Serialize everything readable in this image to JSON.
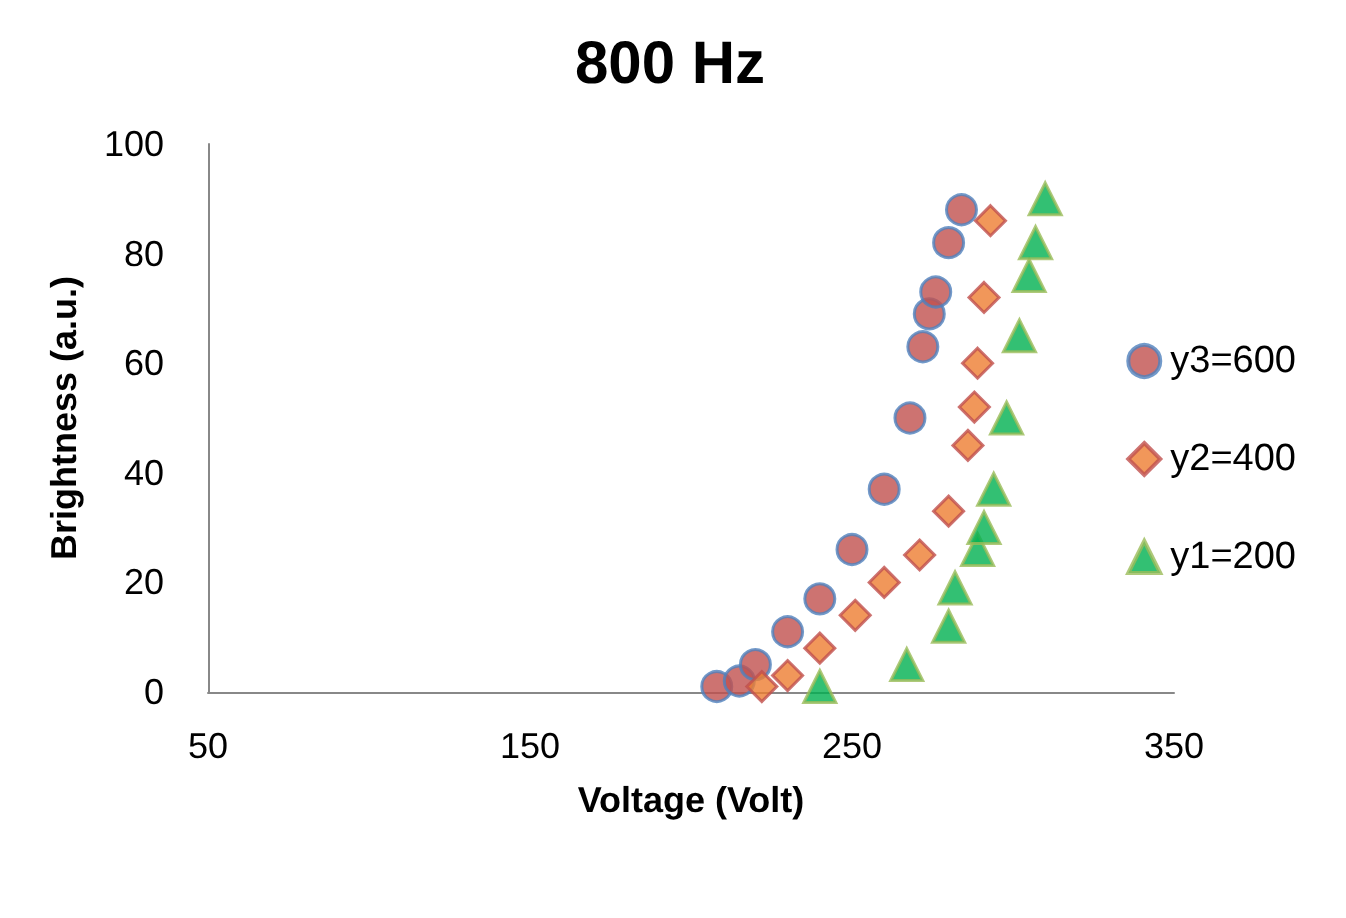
{
  "chart_data": {
    "type": "scatter",
    "title": "800 Hz",
    "xlabel": "Voltage (Volt)",
    "ylabel": "Brightness (a.u.)",
    "xlim": [
      50,
      350
    ],
    "xticks": [
      50,
      150,
      250,
      350
    ],
    "ylim": [
      0,
      100
    ],
    "yticks": [
      0,
      20,
      40,
      60,
      80,
      100
    ],
    "grid": false,
    "legend": "right",
    "series": [
      {
        "name": "y3=600",
        "color": "#c0504d",
        "marker": "circle",
        "x": [
          208,
          215,
          220,
          230,
          240,
          250,
          260,
          268,
          272,
          274,
          276,
          280,
          284
        ],
        "values": [
          1,
          2,
          5,
          11,
          17,
          26,
          37,
          50,
          63,
          69,
          73,
          82,
          88
        ]
      },
      {
        "name": "y2=400",
        "color": "#ed7d31",
        "marker": "diamond",
        "x": [
          222,
          230,
          240,
          251,
          260,
          271,
          280,
          286,
          288,
          289,
          291,
          293
        ],
        "values": [
          1,
          3,
          8,
          14,
          20,
          25,
          33,
          45,
          52,
          60,
          72,
          86
        ]
      },
      {
        "name": "y1=200",
        "color": "#00b050",
        "marker": "triangle",
        "x": [
          240,
          267,
          280,
          282,
          289,
          291,
          294,
          298,
          302,
          305,
          307,
          310
        ],
        "values": [
          1,
          5,
          12,
          19,
          26,
          30,
          37,
          50,
          65,
          76,
          82,
          90
        ]
      }
    ]
  }
}
